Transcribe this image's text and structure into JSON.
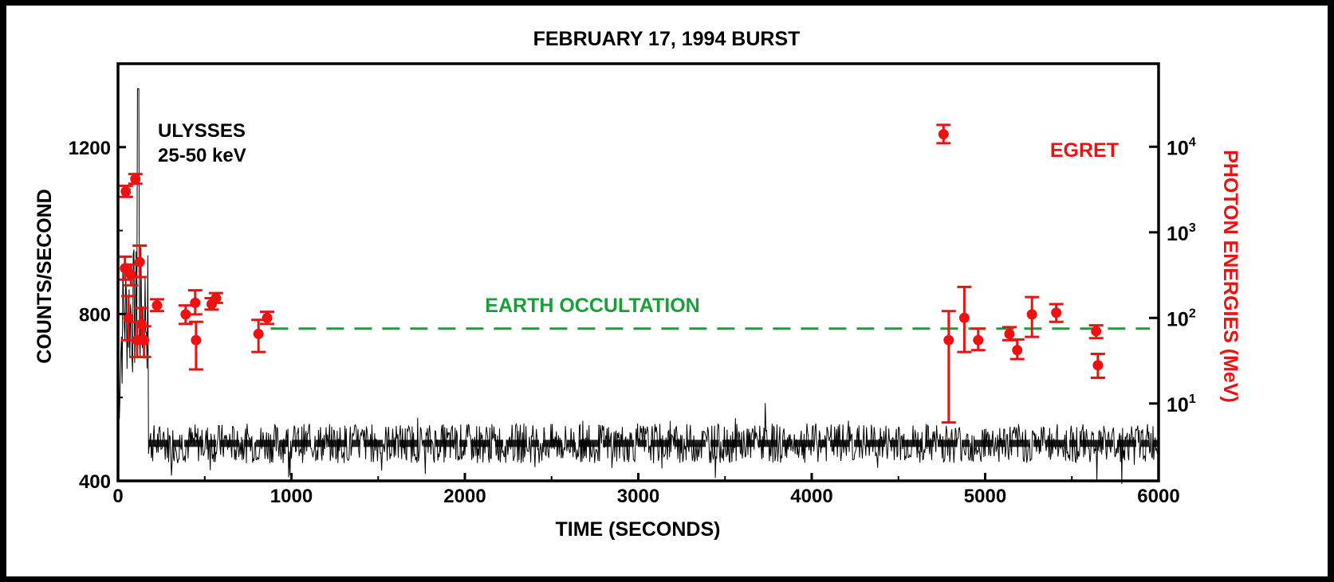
{
  "chart_data": {
    "type": "scatter",
    "title": "FEBRUARY 17, 1994 BURST",
    "xlabel": "TIME (SECONDS)",
    "ylabel": "COUNTS/SECOND",
    "y2label": "PHOTON ENERGIES (MeV)",
    "xlim": [
      0,
      6000
    ],
    "ylim": [
      400,
      1400
    ],
    "y2_scale": "log",
    "y2_ticks": [
      {
        "value": 10,
        "base": "10",
        "exp": "1"
      },
      {
        "value": 100,
        "base": "10",
        "exp": "2"
      },
      {
        "value": 1000,
        "base": "10",
        "exp": "3"
      },
      {
        "value": 10000,
        "base": "10",
        "exp": "4"
      }
    ],
    "x_ticks": [
      "0",
      "1000",
      "2000",
      "3000",
      "4000",
      "5000",
      "6000"
    ],
    "y_ticks": [
      "400",
      "800",
      "1200"
    ],
    "annotations": {
      "ulysses_line1": "ULYSSES",
      "ulysses_line2": "25-50 keV",
      "egret": "EGRET",
      "occultation": "EARTH OCCULTATION"
    },
    "occultation": {
      "x_start": 880,
      "x_end": 5950,
      "y2_level": 75
    },
    "series": [
      {
        "name": "ULYSSES 25-50 keV",
        "color": "#000000",
        "kind": "line",
        "baseline_counts": 490,
        "peak": {
          "x": 115,
          "y": 1340
        }
      },
      {
        "name": "EGRET",
        "color": "#ee1111",
        "kind": "points-with-errorbars",
        "points": [
          {
            "x": 45,
            "y": 3000,
            "lo": 2600,
            "hi": 3500
          },
          {
            "x": 100,
            "y": 4200,
            "lo": 3700,
            "hi": 4800
          },
          {
            "x": 40,
            "y": 380,
            "lo": 280,
            "hi": 520
          },
          {
            "x": 75,
            "y": 320,
            "lo": 240,
            "hi": 420
          },
          {
            "x": 125,
            "y": 450,
            "lo": 300,
            "hi": 700
          },
          {
            "x": 60,
            "y": 100,
            "lo": 55,
            "hi": 180
          },
          {
            "x": 110,
            "y": 55,
            "lo": 35,
            "hi": 90
          },
          {
            "x": 135,
            "y": 85,
            "lo": 50,
            "hi": 130
          },
          {
            "x": 150,
            "y": 55,
            "lo": 35,
            "hi": 80
          },
          {
            "x": 225,
            "y": 140,
            "lo": 120,
            "hi": 165
          },
          {
            "x": 390,
            "y": 110,
            "lo": 85,
            "hi": 140
          },
          {
            "x": 445,
            "y": 150,
            "lo": 110,
            "hi": 210
          },
          {
            "x": 450,
            "y": 55,
            "lo": 25,
            "hi": 90
          },
          {
            "x": 540,
            "y": 145,
            "lo": 125,
            "hi": 170
          },
          {
            "x": 565,
            "y": 170,
            "lo": 150,
            "hi": 195
          },
          {
            "x": 810,
            "y": 65,
            "lo": 40,
            "hi": 95
          },
          {
            "x": 860,
            "y": 100,
            "lo": 85,
            "hi": 118
          },
          {
            "x": 4760,
            "y": 14000,
            "lo": 11000,
            "hi": 18000
          },
          {
            "x": 4790,
            "y": 55,
            "lo": 6,
            "hi": 120
          },
          {
            "x": 4880,
            "y": 100,
            "lo": 40,
            "hi": 230
          },
          {
            "x": 4960,
            "y": 55,
            "lo": 42,
            "hi": 75
          },
          {
            "x": 5140,
            "y": 65,
            "lo": 55,
            "hi": 78
          },
          {
            "x": 5185,
            "y": 42,
            "lo": 33,
            "hi": 56
          },
          {
            "x": 5270,
            "y": 110,
            "lo": 60,
            "hi": 175
          },
          {
            "x": 5410,
            "y": 115,
            "lo": 90,
            "hi": 145
          },
          {
            "x": 5640,
            "y": 70,
            "lo": 58,
            "hi": 82
          },
          {
            "x": 5650,
            "y": 28,
            "lo": 20,
            "hi": 38
          }
        ]
      }
    ]
  }
}
